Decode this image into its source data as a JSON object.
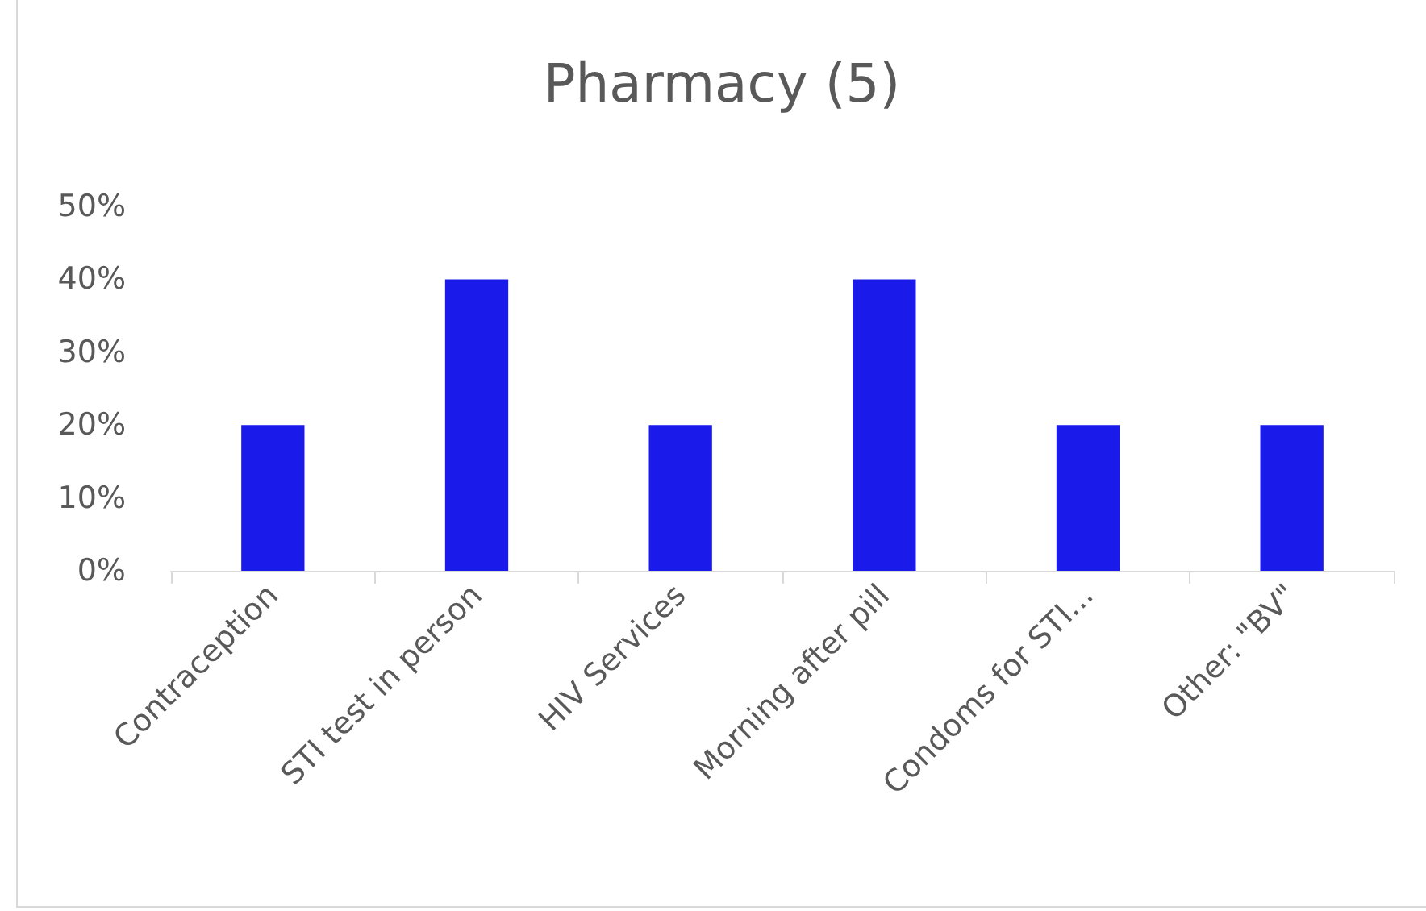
{
  "chart_data": {
    "type": "bar",
    "title": "Pharmacy (5)",
    "categories": [
      "Contraception",
      "STI test in person",
      "HIV Services",
      "Morning after pill",
      "Condoms for STI...",
      "Other: \"BV\""
    ],
    "values": [
      20,
      40,
      20,
      40,
      20,
      20
    ],
    "color": "#1a1aeb",
    "ylim": [
      0,
      50
    ],
    "yticks": [
      {
        "value": 0,
        "label": "0%"
      },
      {
        "value": 10,
        "label": "10%"
      },
      {
        "value": 20,
        "label": "20%"
      },
      {
        "value": 30,
        "label": "30%"
      },
      {
        "value": 40,
        "label": "40%"
      },
      {
        "value": 50,
        "label": "50%"
      }
    ]
  }
}
